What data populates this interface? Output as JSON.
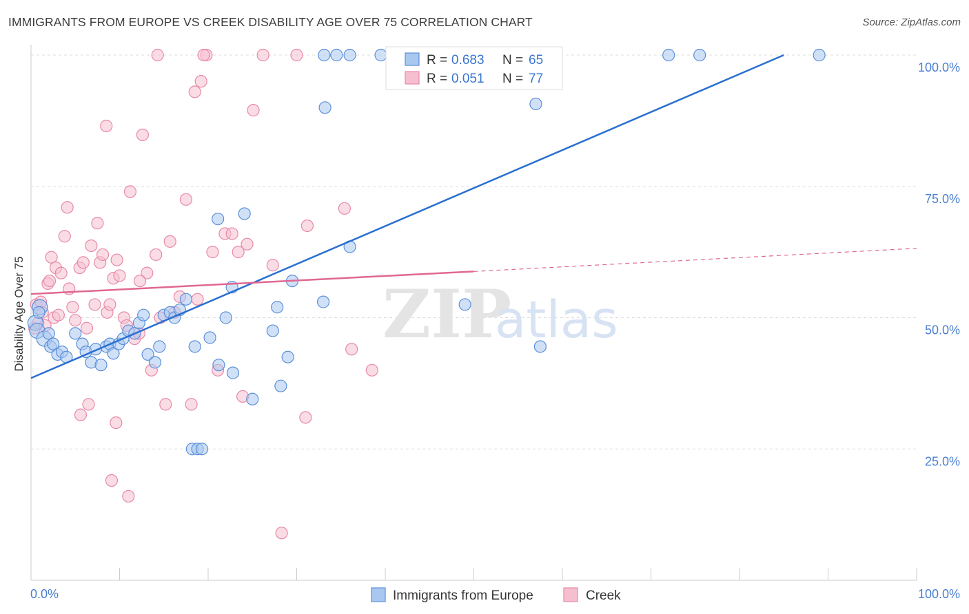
{
  "title": "IMMIGRANTS FROM EUROPE VS CREEK DISABILITY AGE OVER 75 CORRELATION CHART",
  "source": "Source: ZipAtlas.com",
  "watermark": {
    "zip": "ZIP",
    "atlas": "atlas"
  },
  "colors": {
    "blue_fill": "#a9c8f0",
    "blue_stroke": "#5b8fd9",
    "blue_line": "#2a6fd1",
    "pink_fill": "#f6bfd0",
    "pink_stroke": "#e889a8",
    "pink_line": "#e06792",
    "grid": "#dddddd",
    "tick_text": "#4a7fd1"
  },
  "legend": {
    "rows": [
      {
        "r_label": "R = ",
        "r_value": "0.683",
        "n_label": "N = ",
        "n_value": "65",
        "color": "blue"
      },
      {
        "r_label": "R = ",
        "r_value": "0.051",
        "n_label": "N = ",
        "n_value": "77",
        "color": "pink"
      }
    ]
  },
  "bottom_legend": [
    "Immigrants from Europe",
    "Creek"
  ],
  "chart_data": {
    "type": "scatter",
    "title": "IMMIGRANTS FROM EUROPE VS CREEK DISABILITY AGE OVER 75 CORRELATION CHART",
    "xlabel": "",
    "ylabel": "Disability Age Over 75",
    "xlim": [
      0,
      100
    ],
    "ylim": [
      0,
      102
    ],
    "x_ticks": [
      {
        "value": 0,
        "label": "0.0%"
      },
      {
        "value": 100,
        "label": "100.0%"
      }
    ],
    "y_ticks": [
      {
        "value": 25,
        "label": "25.0%"
      },
      {
        "value": 50,
        "label": "50.0%"
      },
      {
        "value": 75,
        "label": "75.0%"
      },
      {
        "value": 100,
        "label": "100.0%"
      }
    ],
    "grid": true,
    "legend_position": "top-center",
    "series": [
      {
        "name": "Immigrants from Europe",
        "color": "blue",
        "trend": {
          "x0": 0,
          "y0": 38.5,
          "x1": 85,
          "y1": 100,
          "dashed_to": 85
        },
        "points": [
          [
            0.5,
            49
          ],
          [
            0.7,
            47.5
          ],
          [
            1.0,
            52
          ],
          [
            1.5,
            46
          ],
          [
            2.0,
            47
          ],
          [
            2.2,
            44.5
          ],
          [
            2.5,
            45
          ],
          [
            3.0,
            43
          ],
          [
            3.5,
            43.5
          ],
          [
            4.0,
            42.5
          ],
          [
            5.0,
            47
          ],
          [
            5.8,
            45
          ],
          [
            6.2,
            43.5
          ],
          [
            6.8,
            41.5
          ],
          [
            7.3,
            44
          ],
          [
            7.9,
            41
          ],
          [
            8.5,
            44.5
          ],
          [
            8.9,
            45
          ],
          [
            9.3,
            43.2
          ],
          [
            9.9,
            45
          ],
          [
            10.4,
            46
          ],
          [
            11.0,
            47.5
          ],
          [
            11.7,
            47
          ],
          [
            12.2,
            49
          ],
          [
            12.7,
            50.5
          ],
          [
            13.2,
            43
          ],
          [
            14.0,
            41.5
          ],
          [
            14.5,
            44.5
          ],
          [
            15.0,
            50.5
          ],
          [
            15.7,
            51
          ],
          [
            16.2,
            50
          ],
          [
            16.8,
            51.5
          ],
          [
            17.5,
            53.5
          ],
          [
            18.2,
            25
          ],
          [
            18.8,
            25
          ],
          [
            19.3,
            25
          ],
          [
            18.5,
            44.5
          ],
          [
            20.2,
            46.2
          ],
          [
            21.1,
            68.8
          ],
          [
            21.2,
            41
          ],
          [
            22.0,
            50
          ],
          [
            22.7,
            55.8
          ],
          [
            22.8,
            39.5
          ],
          [
            24.1,
            69.8
          ],
          [
            25.0,
            34.5
          ],
          [
            27.3,
            47.5
          ],
          [
            27.8,
            52
          ],
          [
            28.2,
            37
          ],
          [
            29.0,
            42.5
          ],
          [
            29.5,
            57
          ],
          [
            33.0,
            53
          ],
          [
            33.1,
            100
          ],
          [
            34.5,
            100
          ],
          [
            36.0,
            100
          ],
          [
            33.2,
            90
          ],
          [
            36.0,
            63.5
          ],
          [
            39.5,
            100
          ],
          [
            47.3,
            100
          ],
          [
            49.0,
            52.5
          ],
          [
            57.0,
            90.7
          ],
          [
            57.5,
            44.5
          ],
          [
            72.0,
            100
          ],
          [
            75.5,
            100
          ],
          [
            89.0,
            100
          ],
          [
            0.9,
            51
          ]
        ]
      },
      {
        "name": "Creek",
        "color": "pink",
        "trend": {
          "x0": 0,
          "y0": 54.5,
          "x1": 50,
          "y1": 58.8,
          "dashed_from": 50,
          "dashed_to": 100,
          "y_end": 63.2
        },
        "points": [
          [
            0.4,
            48
          ],
          [
            0.6,
            52.5
          ],
          [
            0.8,
            49
          ],
          [
            1.1,
            53
          ],
          [
            1.3,
            51
          ],
          [
            1.6,
            48.5
          ],
          [
            1.9,
            56.5
          ],
          [
            2.1,
            57
          ],
          [
            2.3,
            61.5
          ],
          [
            2.6,
            50
          ],
          [
            2.8,
            59.5
          ],
          [
            3.1,
            50.5
          ],
          [
            3.4,
            58.5
          ],
          [
            3.8,
            65.5
          ],
          [
            4.1,
            71
          ],
          [
            4.3,
            55.5
          ],
          [
            4.7,
            52
          ],
          [
            5.0,
            49.5
          ],
          [
            5.5,
            59.5
          ],
          [
            5.9,
            60.5
          ],
          [
            6.3,
            48
          ],
          [
            6.8,
            63.7
          ],
          [
            7.2,
            52.5
          ],
          [
            7.5,
            68
          ],
          [
            7.8,
            60.5
          ],
          [
            8.1,
            62
          ],
          [
            8.6,
            51
          ],
          [
            8.9,
            52.5
          ],
          [
            9.3,
            57.5
          ],
          [
            9.7,
            61
          ],
          [
            10.0,
            58
          ],
          [
            10.5,
            50
          ],
          [
            10.8,
            48.5
          ],
          [
            11.2,
            74
          ],
          [
            11.7,
            46
          ],
          [
            12.2,
            47
          ],
          [
            12.6,
            84.8
          ],
          [
            13.1,
            58.5
          ],
          [
            13.6,
            40
          ],
          [
            14.1,
            62
          ],
          [
            14.6,
            50
          ],
          [
            15.2,
            33.5
          ],
          [
            15.7,
            64.5
          ],
          [
            16.2,
            51
          ],
          [
            16.8,
            54
          ],
          [
            17.5,
            72.5
          ],
          [
            18.1,
            33.5
          ],
          [
            18.8,
            53.5
          ],
          [
            19.2,
            95
          ],
          [
            19.8,
            100
          ],
          [
            20.5,
            62.5
          ],
          [
            21.1,
            40
          ],
          [
            21.9,
            66
          ],
          [
            22.7,
            66
          ],
          [
            23.4,
            62.5
          ],
          [
            23.9,
            35
          ],
          [
            24.4,
            64
          ],
          [
            25.1,
            89.5
          ],
          [
            26.2,
            100
          ],
          [
            27.3,
            60
          ],
          [
            28.3,
            9
          ],
          [
            31.0,
            31
          ],
          [
            31.2,
            67.5
          ],
          [
            35.4,
            70.8
          ],
          [
            36.2,
            44
          ],
          [
            38.5,
            40
          ],
          [
            8.5,
            86.5
          ],
          [
            9.1,
            19
          ],
          [
            11.0,
            16
          ],
          [
            9.6,
            30
          ],
          [
            5.6,
            31.5
          ],
          [
            6.5,
            33.5
          ],
          [
            14.3,
            100
          ],
          [
            18.5,
            93
          ],
          [
            30.0,
            100
          ],
          [
            19.5,
            100
          ],
          [
            12.3,
            57
          ]
        ]
      }
    ]
  }
}
